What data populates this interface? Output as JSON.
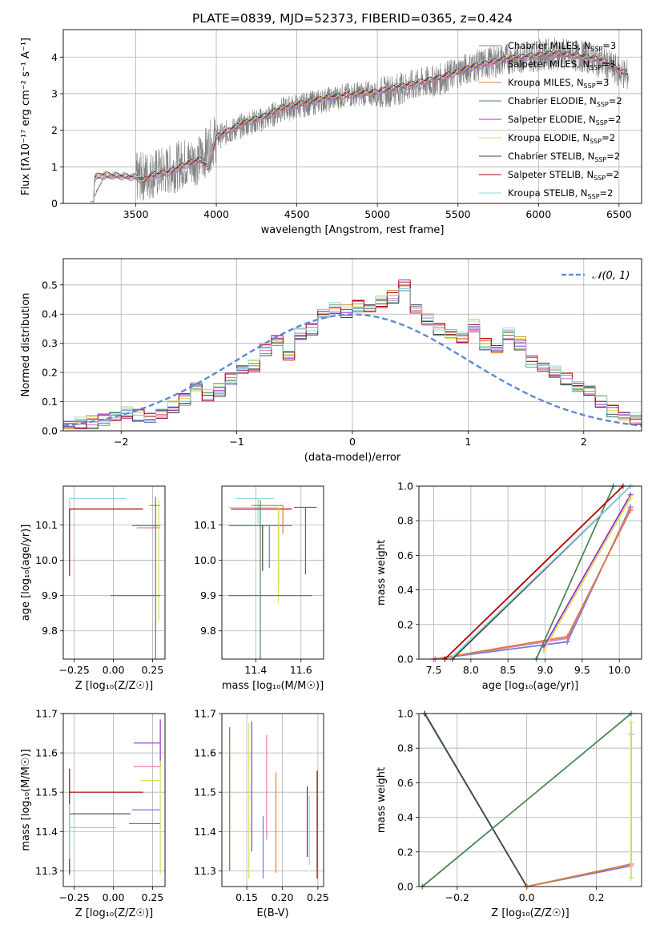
{
  "figure": {
    "title": "PLATE=0839, MJD=52373, FIBERID=0365, z=0.424"
  },
  "colors": {
    "chabrier_miles": "#6a7fd8",
    "salpeter_miles": "#e377c2",
    "kroupa_miles": "#e07b39",
    "chabrier_elodie": "#4c8a56",
    "salpeter_elodie": "#9b30c9",
    "kroupa_elodie": "#d4e157",
    "chabrier_stelib": "#444444",
    "salpeter_stelib": "#b30000",
    "kroupa_stelib": "#8ed8e0",
    "data": "#7f7f7f",
    "normal_curve": "#5b8ad6",
    "grid": "#b0b0b0"
  },
  "chart_data": [
    {
      "id": "spectrum",
      "type": "line",
      "xlabel": "wavelength [Angstrom, rest frame]",
      "ylabel": "Flux [fλ10⁻¹⁷ erg cm⁻² s⁻¹ A⁻¹]",
      "xlim": [
        3050,
        6640
      ],
      "ylim": [
        0,
        4.75
      ],
      "xticks": [
        3500,
        4000,
        4500,
        5000,
        5500,
        6000,
        6500
      ],
      "yticks": [
        0,
        1,
        2,
        3,
        4
      ],
      "legend_position": "upper right",
      "data_spectrum": {
        "x": [
          3220,
          3300,
          3400,
          3500,
          3600,
          3700,
          3800,
          3900,
          4000,
          4100,
          4200,
          4300,
          4400,
          4500,
          4600,
          4700,
          4800,
          4900,
          5000,
          5100,
          5200,
          5300,
          5400,
          5500,
          5600,
          5700,
          5800,
          5900,
          6000,
          6100,
          6200,
          6300,
          6400,
          6500,
          6560
        ],
        "y": [
          0.0,
          0.7,
          0.75,
          0.7,
          0.8,
          0.9,
          1.1,
          1.2,
          1.8,
          2.0,
          2.2,
          2.3,
          2.55,
          2.65,
          2.75,
          2.85,
          2.95,
          3.0,
          3.0,
          3.1,
          3.2,
          3.3,
          3.4,
          3.6,
          3.75,
          3.85,
          3.95,
          4.0,
          4.05,
          4.1,
          4.05,
          4.0,
          3.85,
          3.6,
          3.5
        ]
      },
      "series": [
        {
          "name": "Chabrier MILES, N$_{SSP}$=3",
          "label": "Chabrier MILES, N",
          "sub": "SSP",
          "suffix": "=3",
          "color_key": "chabrier_miles"
        },
        {
          "name": "Salpeter MILES, N$_{SSP}$=3",
          "label": "Salpeter MILES, N",
          "sub": "SSP",
          "suffix": "=3",
          "color_key": "salpeter_miles"
        },
        {
          "name": "Kroupa MILES, N$_{SSP}$=3",
          "label": "Kroupa MILES, N",
          "sub": "SSP",
          "suffix": "=3",
          "color_key": "kroupa_miles"
        },
        {
          "name": "Chabrier ELODIE, N$_{SSP}$=2",
          "label": "Chabrier ELODIE, N",
          "sub": "SSP",
          "suffix": "=2",
          "color_key": "chabrier_elodie"
        },
        {
          "name": "Salpeter ELODIE, N$_{SSP}$=2",
          "label": "Salpeter ELODIE, N",
          "sub": "SSP",
          "suffix": "=2",
          "color_key": "salpeter_elodie"
        },
        {
          "name": "Kroupa ELODIE, N$_{SSP}$=2",
          "label": "Kroupa ELODIE, N",
          "sub": "SSP",
          "suffix": "=2",
          "color_key": "kroupa_elodie"
        },
        {
          "name": "Chabrier STELIB, N$_{SSP}$=2",
          "label": "Chabrier STELIB, N",
          "sub": "SSP",
          "suffix": "=2",
          "color_key": "chabrier_stelib"
        },
        {
          "name": "Salpeter STELIB, N$_{SSP}$=2",
          "label": "Salpeter STELIB, N",
          "sub": "SSP",
          "suffix": "=2",
          "color_key": "salpeter_stelib"
        },
        {
          "name": "Kroupa STELIB, N$_{SSP}$=2",
          "label": "Kroupa STELIB, N",
          "sub": "SSP",
          "suffix": "=2",
          "color_key": "kroupa_stelib"
        }
      ],
      "model_continuum": {
        "x": [
          3220,
          3250,
          3300,
          3400,
          3500,
          3550,
          3600,
          3700,
          3800,
          3900,
          3950,
          4000,
          4100,
          4200,
          4300,
          4400,
          4500,
          4600,
          4700,
          4800,
          4900,
          5000,
          5100,
          5200,
          5300,
          5400,
          5500,
          5600,
          5700,
          5800,
          5900,
          6000,
          6100,
          6200,
          6300,
          6400,
          6500,
          6560
        ],
        "y": [
          0.55,
          0.72,
          0.78,
          0.75,
          0.72,
          0.62,
          0.78,
          0.85,
          1.05,
          1.2,
          0.95,
          1.8,
          2.05,
          2.25,
          2.38,
          2.6,
          2.7,
          2.8,
          2.9,
          2.95,
          3.0,
          3.05,
          3.15,
          3.25,
          3.35,
          3.45,
          3.6,
          3.75,
          3.85,
          3.95,
          4.0,
          4.05,
          4.1,
          4.05,
          4.0,
          3.9,
          3.65,
          3.5
        ]
      }
    },
    {
      "id": "residuals",
      "type": "line",
      "xlabel": "(data-model)/error",
      "ylabel": "Normed distribution",
      "xlim": [
        -2.5,
        2.5
      ],
      "ylim": [
        0,
        0.59
      ],
      "xticks": [
        -2,
        -1,
        0,
        1,
        2
      ],
      "yticks": [
        0.0,
        0.1,
        0.2,
        0.3,
        0.4,
        0.5
      ],
      "ytick_labels": [
        "0.0",
        "0.1",
        "0.2",
        "0.3",
        "0.4",
        "0.5"
      ],
      "legend": "𝒩(0, 1)",
      "bin_edges_start": -2.5,
      "bin_width": 0.1,
      "base_hist": [
        0.02,
        0.025,
        0.03,
        0.04,
        0.05,
        0.06,
        0.055,
        0.045,
        0.06,
        0.08,
        0.11,
        0.15,
        0.12,
        0.14,
        0.18,
        0.21,
        0.22,
        0.28,
        0.31,
        0.26,
        0.33,
        0.35,
        0.4,
        0.42,
        0.41,
        0.43,
        0.42,
        0.44,
        0.46,
        0.5,
        0.42,
        0.38,
        0.35,
        0.33,
        0.32,
        0.36,
        0.3,
        0.28,
        0.33,
        0.3,
        0.24,
        0.22,
        0.2,
        0.18,
        0.15,
        0.14,
        0.1,
        0.07,
        0.05,
        0.04,
        0.05
      ]
    },
    {
      "id": "age_vs_Z",
      "type": "scatter",
      "xlabel": "Z [log₁₀(Z/Z☉)]",
      "ylabel": "age  [log₁₀(age/yr)]",
      "xlim": [
        -0.32,
        0.33
      ],
      "ylim": [
        9.72,
        10.21
      ],
      "xticks": [
        -0.25,
        0.0,
        0.25
      ],
      "xtick_labels": [
        "−0.25",
        "0.00",
        "0.25"
      ],
      "yticks": [
        9.8,
        9.9,
        10.0,
        10.1
      ],
      "ytick_labels": [
        "9.8",
        "9.9",
        "10.0",
        "10.1"
      ],
      "points": [
        {
          "c": "kroupa_stelib",
          "x": -0.28,
          "xerr": [
            0.0,
            0.36
          ],
          "y": 10.175,
          "yerr": [
            0.17,
            0.0
          ]
        },
        {
          "c": "salpeter_stelib",
          "x": -0.28,
          "xerr": [
            0.0,
            0.47
          ],
          "y": 10.145,
          "yerr": [
            0.19,
            0.0
          ]
        },
        {
          "c": "kroupa_miles",
          "x": 0.3,
          "xerr": [
            0.07,
            0.0
          ],
          "y": 10.155,
          "yerr": [
            0.0,
            0.0
          ]
        },
        {
          "c": "chabrier_miles",
          "x": 0.3,
          "xerr": [
            0.18,
            0.0
          ],
          "y": 10.098,
          "yerr": [
            0.0,
            0.0
          ]
        },
        {
          "c": "salpeter_miles",
          "x": 0.3,
          "xerr": [
            0.15,
            0.0
          ],
          "y": 10.092,
          "yerr": [
            0.0,
            0.0
          ]
        },
        {
          "c": "kroupa_elodie",
          "x": 0.29,
          "xerr": [
            0.0,
            0.0
          ],
          "y": 10.17,
          "yerr": [
            0.34,
            0.0
          ]
        },
        {
          "c": "chabrier_elodie",
          "x": 0.27,
          "xerr": [
            0.29,
            0.03
          ],
          "y": 9.9,
          "yerr": [
            0.18,
            0.28
          ]
        }
      ]
    },
    {
      "id": "age_vs_mass",
      "type": "scatter",
      "xlabel": "mass [log₁₀(M/M☉)]",
      "ylabel": "",
      "xlim": [
        11.25,
        11.7
      ],
      "ylim": [
        9.72,
        10.21
      ],
      "xticks": [
        11.4,
        11.6
      ],
      "xtick_labels": [
        "11.4",
        "11.6"
      ],
      "yticks": [
        9.8,
        9.9,
        10.0,
        10.1
      ],
      "ytick_labels": [
        "9.8",
        "9.9",
        "10.0",
        "10.1"
      ],
      "points": [
        {
          "c": "kroupa_stelib",
          "x": 11.41,
          "xerr": [
            0.1,
            0.07
          ],
          "y": 10.175,
          "yerr": [
            0.07,
            0.0
          ]
        },
        {
          "c": "salpeter_stelib",
          "x": 11.5,
          "xerr": [
            0.21,
            0.06
          ],
          "y": 10.145,
          "yerr": [
            0.21,
            0.0
          ]
        },
        {
          "c": "kroupa_miles",
          "x": 11.52,
          "xerr": [
            0.14,
            0.0
          ],
          "y": 10.155,
          "yerr": [
            0.08,
            0.0
          ]
        },
        {
          "c": "chabrier_miles",
          "x": 11.46,
          "xerr": [
            0.18,
            0.1
          ],
          "y": 10.098,
          "yerr": [
            0.12,
            0.0
          ]
        },
        {
          "c": "salpeter_elodie",
          "x": 11.62,
          "xerr": [
            0.05,
            0.05
          ],
          "y": 10.15,
          "yerr": [
            0.19,
            0.0
          ]
        },
        {
          "c": "kroupa_elodie",
          "x": 11.5,
          "xerr": [
            0.22,
            0.0
          ],
          "y": 10.15,
          "yerr": [
            0.27,
            0.0
          ]
        },
        {
          "c": "chabrier_elodie",
          "x": 11.42,
          "xerr": [
            0.14,
            0.23
          ],
          "y": 9.9,
          "yerr": [
            0.18,
            0.27
          ]
        },
        {
          "c": "chabrier_stelib",
          "x": 11.43,
          "xerr": [
            0.0,
            0.0
          ],
          "y": 10.0,
          "yerr": [
            0.03,
            0.1
          ]
        }
      ]
    },
    {
      "id": "weight_vs_age",
      "type": "line",
      "xlabel": "age  [log₁₀(age/yr)]",
      "ylabel": "mass weight",
      "xlim": [
        7.3,
        10.3
      ],
      "ylim": [
        0,
        1.0
      ],
      "xticks": [
        7.5,
        8.0,
        8.5,
        9.0,
        9.5,
        10.0
      ],
      "xtick_labels": [
        "7.5",
        "8.0",
        "8.5",
        "9.0",
        "9.5",
        "10.0"
      ],
      "yticks": [
        0.0,
        0.2,
        0.4,
        0.6,
        0.8,
        1.0
      ],
      "ytick_labels": [
        "0.0",
        "0.2",
        "0.4",
        "0.6",
        "0.8",
        "1.0"
      ],
      "lines": [
        {
          "c": "chabrier_miles",
          "x": [
            7.5,
            9.3,
            10.15
          ],
          "y": [
            0.0,
            0.1,
            0.88
          ]
        },
        {
          "c": "salpeter_miles",
          "x": [
            7.5,
            9.3,
            10.15
          ],
          "y": [
            0.0,
            0.12,
            0.87
          ]
        },
        {
          "c": "kroupa_miles",
          "x": [
            7.52,
            9.3,
            10.15
          ],
          "y": [
            0.0,
            0.13,
            0.86
          ]
        },
        {
          "c": "chabrier_elodie",
          "x": [
            8.88,
            9.92
          ],
          "y": [
            0.0,
            1.0
          ]
        },
        {
          "c": "salpeter_elodie",
          "x": [
            8.98,
            10.15
          ],
          "y": [
            0.07,
            0.95
          ]
        },
        {
          "c": "kroupa_elodie",
          "x": [
            8.98,
            10.15
          ],
          "y": [
            0.05,
            0.93
          ]
        },
        {
          "c": "chabrier_stelib",
          "x": [
            7.75,
            10.15
          ],
          "y": [
            0.0,
            1.0
          ]
        },
        {
          "c": "salpeter_stelib",
          "x": [
            7.65,
            10.05
          ],
          "y": [
            0.0,
            1.0
          ]
        },
        {
          "c": "kroupa_stelib",
          "x": [
            7.72,
            10.15
          ],
          "y": [
            0.0,
            1.0
          ]
        }
      ]
    },
    {
      "id": "mass_vs_Z",
      "type": "scatter",
      "xlabel": "Z [log₁₀(Z/Z☉)]",
      "ylabel": "mass [log₁₀(M/M☉)]",
      "xlim": [
        -0.32,
        0.33
      ],
      "ylim": [
        11.26,
        11.7
      ],
      "xticks": [
        -0.25,
        0.0,
        0.25
      ],
      "xtick_labels": [
        "−0.25",
        "0.00",
        "0.25"
      ],
      "yticks": [
        11.3,
        11.4,
        11.5,
        11.6,
        11.7
      ],
      "ytick_labels": [
        "11.3",
        "11.4",
        "11.5",
        "11.6",
        "11.7"
      ],
      "points": [
        {
          "c": "salpeter_elodie",
          "x": 0.3,
          "xerr": [
            0.17,
            0.0
          ],
          "y": 11.625,
          "yerr": [
            0.06,
            0.06
          ]
        },
        {
          "c": "salpeter_miles",
          "x": 0.3,
          "xerr": [
            0.17,
            0.0
          ],
          "y": 11.565,
          "yerr": [
            0.0,
            0.0
          ]
        },
        {
          "c": "kroupa_elodie",
          "x": 0.3,
          "xerr": [
            0.13,
            0.0
          ],
          "y": 11.53,
          "yerr": [
            0.24,
            0.05
          ]
        },
        {
          "c": "salpeter_stelib",
          "x": -0.28,
          "xerr": [
            0.0,
            0.47
          ],
          "y": 11.5,
          "yerr": [
            0.21,
            0.06
          ]
        },
        {
          "c": "chabrier_miles",
          "x": 0.3,
          "xerr": [
            0.18,
            0.0
          ],
          "y": 11.455,
          "yerr": [
            0.0,
            0.0
          ]
        },
        {
          "c": "chabrier_stelib",
          "x": -0.28,
          "xerr": [
            0.0,
            0.39
          ],
          "y": 11.445,
          "yerr": [
            0.0,
            0.0
          ]
        },
        {
          "c": "chabrier_elodie",
          "x": 0.3,
          "xerr": [
            0.2,
            0.0
          ],
          "y": 11.42,
          "yerr": [
            0.0,
            0.0
          ]
        },
        {
          "c": "kroupa_stelib",
          "x": -0.28,
          "xerr": [
            0.0,
            0.3
          ],
          "y": 11.41,
          "yerr": [
            0.08,
            0.06
          ]
        }
      ]
    },
    {
      "id": "mass_vs_ebv",
      "type": "scatter",
      "xlabel": "E(B-V)",
      "ylabel": "",
      "xlim": [
        0.115,
        0.258
      ],
      "ylim": [
        11.26,
        11.7
      ],
      "xticks": [
        0.15,
        0.2,
        0.25
      ],
      "xtick_labels": [
        "0.15",
        "0.20",
        "0.25"
      ],
      "yticks": [
        11.3,
        11.4,
        11.5,
        11.6,
        11.7
      ],
      "ytick_labels": [
        "11.3",
        "11.4",
        "11.5",
        "11.6",
        "11.7"
      ],
      "points": [
        {
          "c": "chabrier_elodie",
          "x": 0.126,
          "y1": 11.3,
          "y2": 11.665
        },
        {
          "c": "kroupa_elodie",
          "x": 0.153,
          "y1": 11.28,
          "y2": 11.675
        },
        {
          "c": "salpeter_elodie",
          "x": 0.157,
          "y1": 11.35,
          "y2": 11.68
        },
        {
          "c": "chabrier_miles",
          "x": 0.173,
          "y1": 11.28,
          "y2": 11.44
        },
        {
          "c": "salpeter_miles",
          "x": 0.178,
          "y1": 11.38,
          "y2": 11.645
        },
        {
          "c": "kroupa_miles",
          "x": 0.191,
          "y1": 11.295,
          "y2": 11.55
        },
        {
          "c": "chabrier_stelib",
          "x": 0.235,
          "y1": 11.335,
          "y2": 11.515
        },
        {
          "c": "kroupa_stelib",
          "x": 0.238,
          "y1": 11.315,
          "y2": 11.49
        },
        {
          "c": "salpeter_stelib",
          "x": 0.249,
          "y1": 11.28,
          "y2": 11.555
        }
      ]
    },
    {
      "id": "weight_vs_Z",
      "type": "line",
      "xlabel": "Z [log₁₀(Z/Z☉)]",
      "ylabel": "mass weight",
      "xlim": [
        -0.31,
        0.33
      ],
      "ylim": [
        0,
        1.0
      ],
      "xticks": [
        -0.2,
        0.0,
        0.2
      ],
      "xtick_labels": [
        "−0.2",
        "0.0",
        "0.2"
      ],
      "yticks": [
        0.0,
        0.2,
        0.4,
        0.6,
        0.8,
        1.0
      ],
      "ytick_labels": [
        "0.0",
        "0.2",
        "0.4",
        "0.6",
        "0.8",
        "1.0"
      ],
      "lines": [
        {
          "c": "kroupa_stelib",
          "x": [
            -0.295,
            0.0
          ],
          "y": [
            1.0,
            0.0
          ]
        },
        {
          "c": "chabrier_stelib",
          "x": [
            -0.293,
            0.0
          ],
          "y": [
            1.0,
            0.0
          ]
        },
        {
          "c": "chabrier_elodie",
          "x": [
            -0.3,
            0.3
          ],
          "y": [
            0.0,
            1.0
          ]
        },
        {
          "c": "chabrier_miles",
          "x": [
            0.0,
            0.3
          ],
          "y": [
            0.0,
            0.12
          ]
        },
        {
          "c": "kroupa_miles",
          "x": [
            0.0,
            0.3
          ],
          "y": [
            0.0,
            0.13
          ]
        },
        {
          "c": "salpeter_miles",
          "x": [
            0.3,
            0.3
          ],
          "y": [
            0.12,
            0.88
          ]
        },
        {
          "c": "kroupa_elodie",
          "x": [
            0.3,
            0.3
          ],
          "y": [
            0.05,
            0.95
          ]
        }
      ]
    }
  ]
}
